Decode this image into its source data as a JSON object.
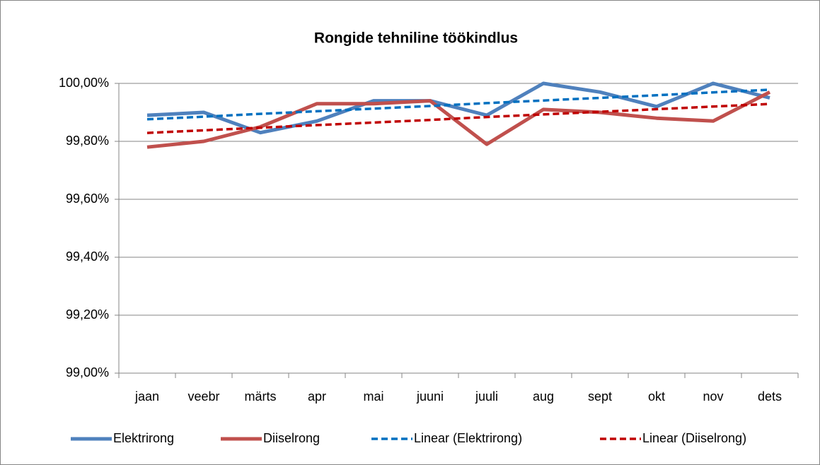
{
  "chart_data": {
    "type": "line",
    "title": "Rongide tehniline töökindlus",
    "categories": [
      "jaan",
      "veebr",
      "märts",
      "apr",
      "mai",
      "juuni",
      "juuli",
      "aug",
      "sept",
      "okt",
      "nov",
      "dets"
    ],
    "series": [
      {
        "name": "Elektrirong",
        "color": "#4f81bd",
        "dashed": false,
        "values": [
          99.89,
          99.9,
          99.83,
          99.87,
          99.94,
          99.94,
          99.89,
          100.0,
          99.97,
          99.92,
          100.0,
          99.95
        ]
      },
      {
        "name": "Diiselrong",
        "color": "#c0504d",
        "dashed": false,
        "values": [
          99.78,
          99.8,
          99.85,
          99.93,
          99.93,
          99.94,
          99.79,
          99.91,
          99.9,
          99.88,
          99.87,
          99.97
        ]
      },
      {
        "name": "Linear (Elektrirong)",
        "color": "#0070c0",
        "dashed": true,
        "values": [
          99.876,
          99.885,
          99.895,
          99.904,
          99.913,
          99.922,
          99.932,
          99.941,
          99.95,
          99.959,
          99.969,
          99.978
        ]
      },
      {
        "name": "Linear (Diiselrong)",
        "color": "#c00000",
        "dashed": true,
        "values": [
          99.829,
          99.838,
          99.847,
          99.856,
          99.865,
          99.874,
          99.884,
          99.893,
          99.902,
          99.911,
          99.92,
          99.929
        ]
      }
    ],
    "ylim": [
      99.0,
      100.0
    ],
    "yticks": [
      {
        "value": 99.0,
        "label": "99,00%"
      },
      {
        "value": 99.2,
        "label": "99,20%"
      },
      {
        "value": 99.4,
        "label": "99,40%"
      },
      {
        "value": 99.6,
        "label": "99,60%"
      },
      {
        "value": 99.8,
        "label": "99,80%"
      },
      {
        "value": 100.0,
        "label": "100,00%"
      }
    ],
    "grid": true,
    "legend": "bottom"
  }
}
